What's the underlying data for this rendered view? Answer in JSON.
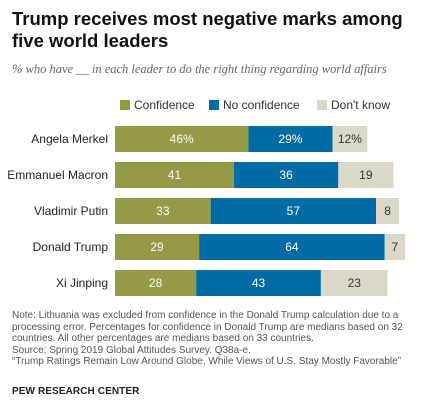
{
  "header": {
    "title": "Trump receives most negative marks among five world leaders",
    "subtitle": "% who have __ in each leader to do the right thing regarding world affairs"
  },
  "chart_data": {
    "type": "bar",
    "orientation": "horizontal",
    "stacked": true,
    "categories": [
      "Angela Merkel",
      "Emmanuel Macron",
      "Vladimir Putin",
      "Donald Trump",
      "Xi Jinping"
    ],
    "series": [
      {
        "name": "Confidence",
        "color": "#949a45",
        "values": [
          46,
          41,
          33,
          29,
          28
        ],
        "labels": [
          "46%",
          "41",
          "33",
          "29",
          "28"
        ]
      },
      {
        "name": "No confidence",
        "color": "#006ba4",
        "values": [
          29,
          36,
          57,
          64,
          43
        ],
        "labels": [
          "29%",
          "36",
          "57",
          "64",
          "43"
        ]
      },
      {
        "name": "Don't know",
        "color": "#dcd8c9",
        "values": [
          12,
          19,
          8,
          7,
          23
        ],
        "labels": [
          "12%",
          "19",
          "8",
          "7",
          "23"
        ]
      }
    ],
    "legend": "top",
    "grid": false
  },
  "footer": {
    "note_lines": [
      "Note: Lithuania was excluded from confidence in the Donald Trump calculation due to a",
      "processing error. Percentages for confidence in Donald Trump are medians based on 32",
      "countries. All other percentages are medians based on 33 countries.",
      "Source: Spring 2019 Global Attitudes Survey. Q38a-e.",
      "“Trump Ratings Remain Low Around Globe, While Views of U.S. Stay Mostly Favorable”"
    ],
    "brand": "PEW RESEARCH CENTER"
  }
}
